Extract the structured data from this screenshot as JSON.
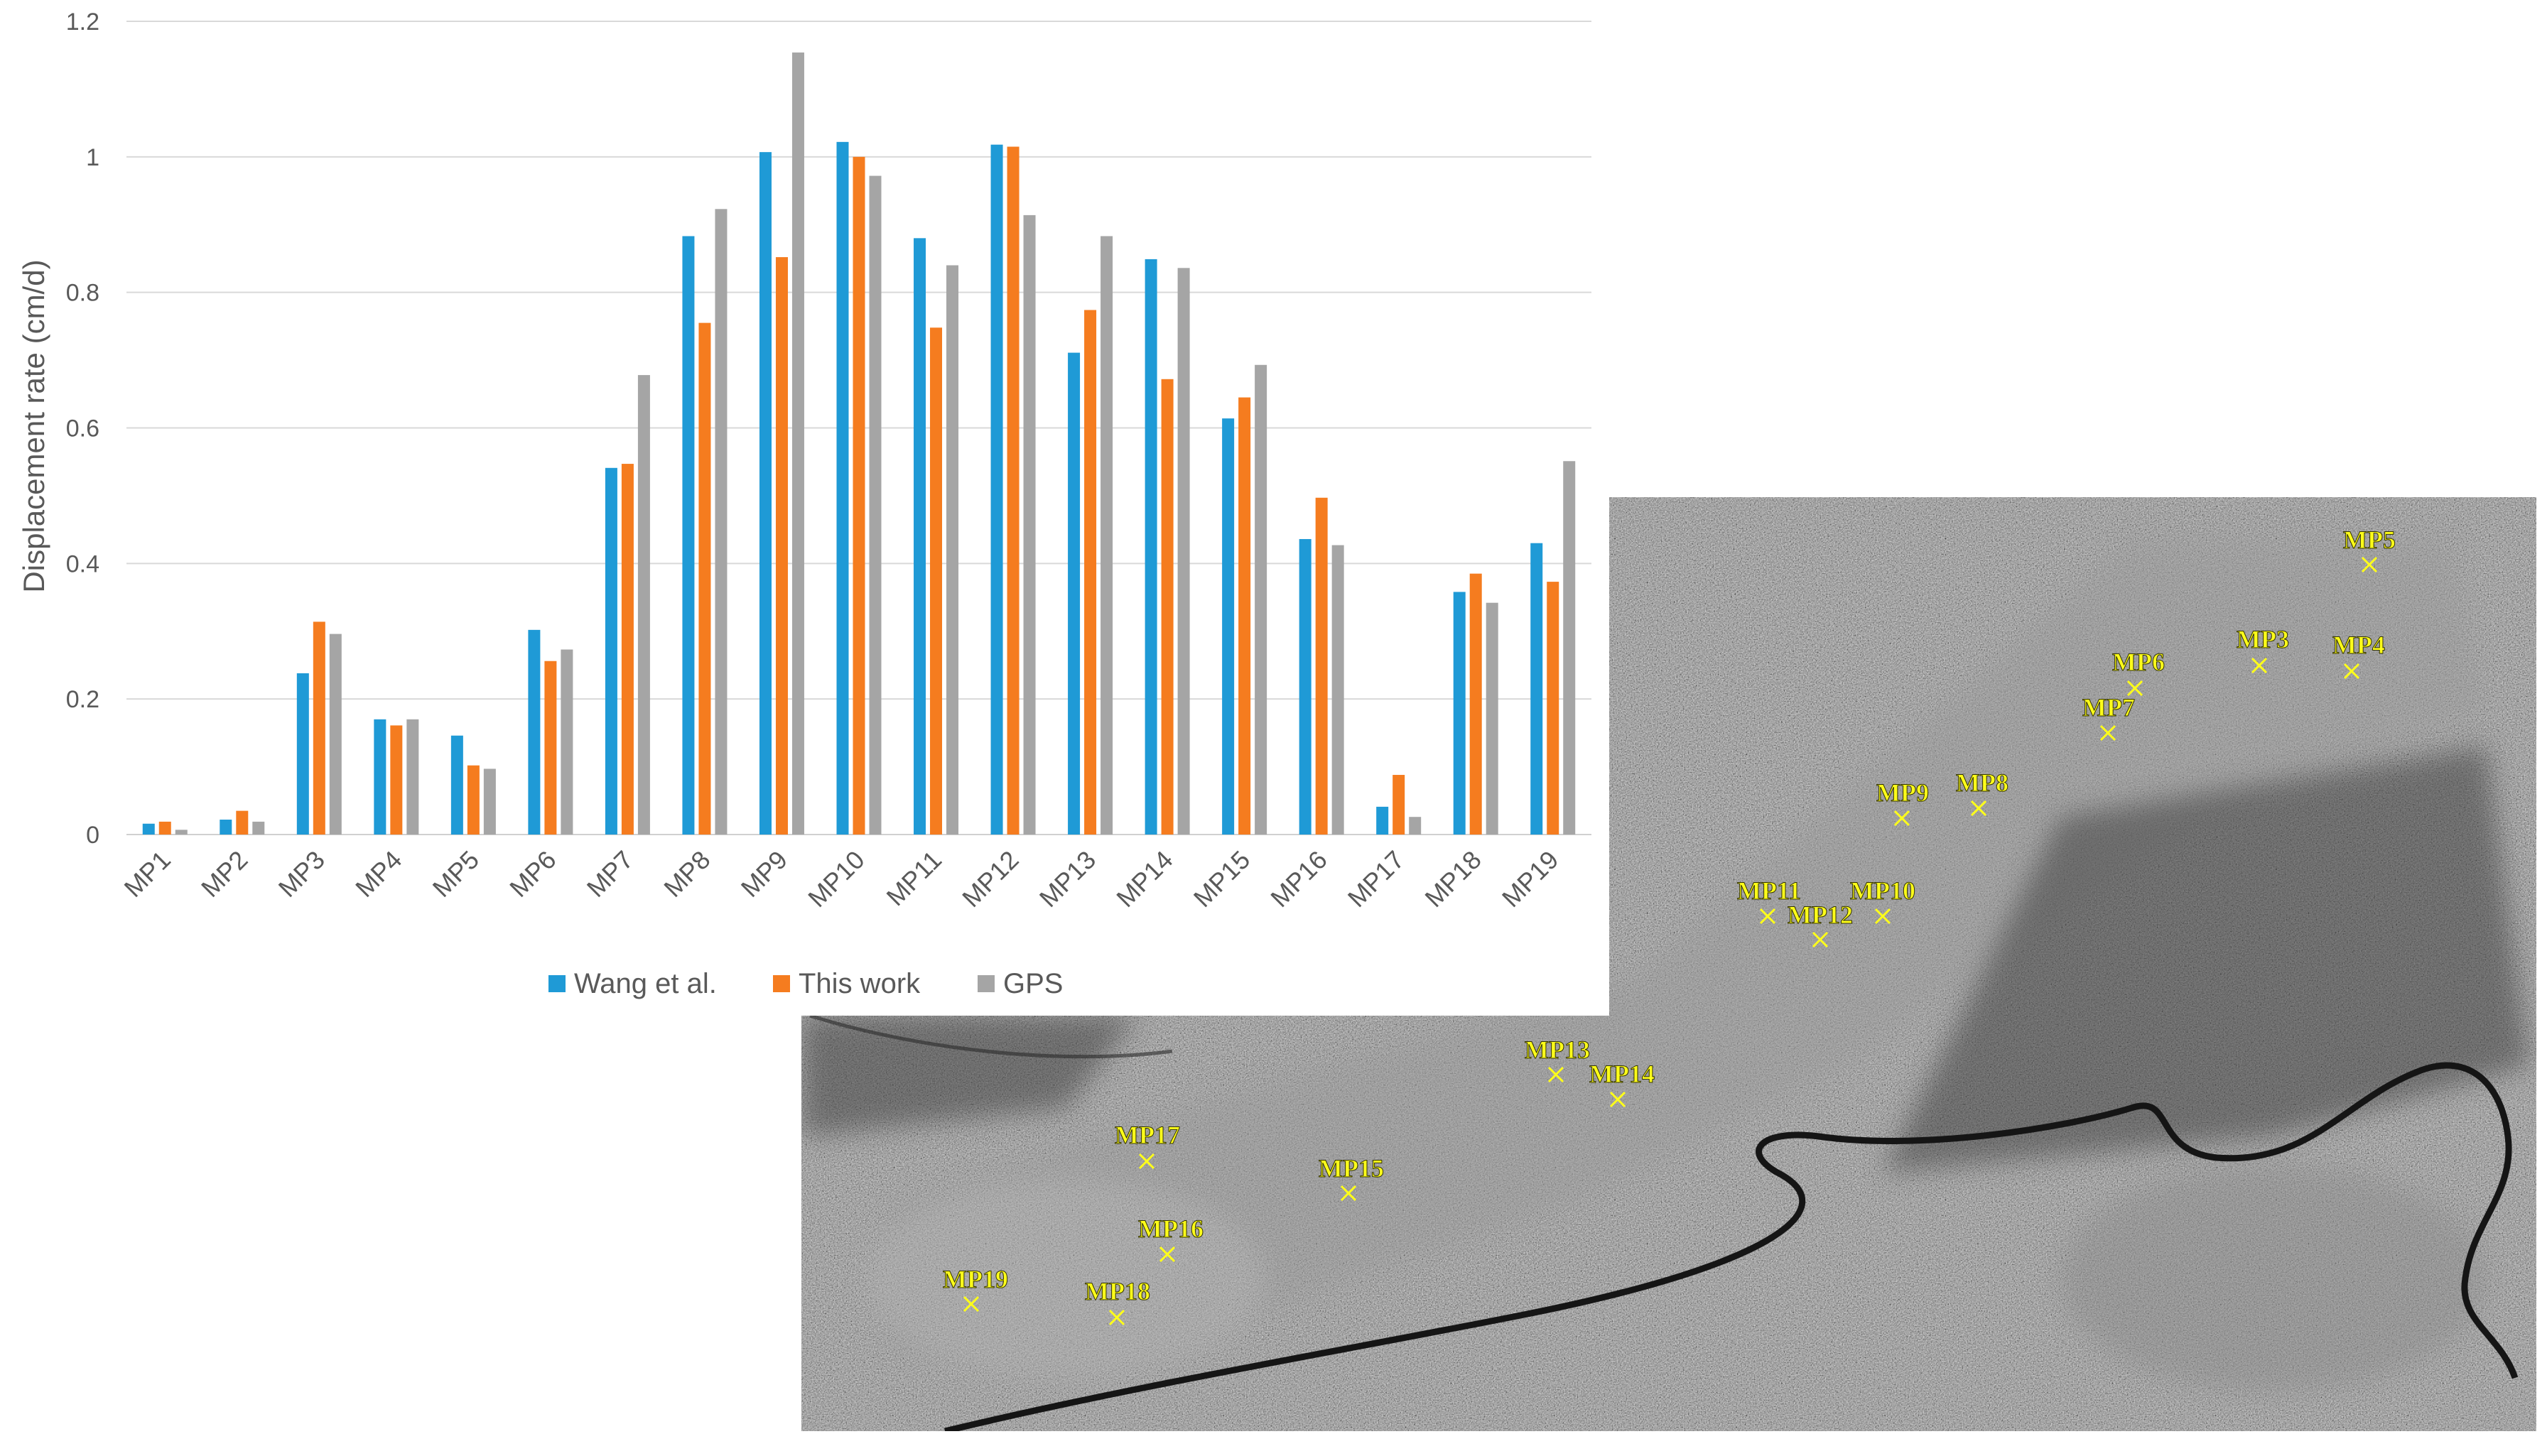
{
  "chart_data": {
    "type": "bar",
    "ylabel": "Displacement rate (cm/d)",
    "ylim": [
      0,
      1.2
    ],
    "yticks": [
      "0",
      "0.2",
      "0.4",
      "0.6",
      "0.8",
      "1",
      "1.2"
    ],
    "grid": true,
    "legend_position": "bottom",
    "categories": [
      "MP1",
      "MP2",
      "MP3",
      "MP4",
      "MP5",
      "MP6",
      "MP7",
      "MP8",
      "MP9",
      "MP10",
      "MP11",
      "MP12",
      "MP13",
      "MP14",
      "MP15",
      "MP16",
      "MP17",
      "MP18",
      "MP19"
    ],
    "series": [
      {
        "name": "Wang et al.",
        "color": "#1f9ad6",
        "values": [
          0.016,
          0.022,
          0.238,
          0.17,
          0.146,
          0.302,
          0.541,
          0.883,
          1.007,
          1.022,
          0.88,
          1.018,
          0.711,
          0.849,
          0.614,
          0.436,
          0.041,
          0.358,
          0.43
        ]
      },
      {
        "name": "This work",
        "color": "#f57c1f",
        "values": [
          0.019,
          0.035,
          0.314,
          0.161,
          0.102,
          0.256,
          0.547,
          0.755,
          0.852,
          1.0,
          0.748,
          1.015,
          0.774,
          0.672,
          0.645,
          0.497,
          0.088,
          0.385,
          0.373
        ]
      },
      {
        "name": "GPS",
        "color": "#a5a5a5",
        "values": [
          0.007,
          0.019,
          0.296,
          0.17,
          0.097,
          0.273,
          0.678,
          0.923,
          1.154,
          0.972,
          0.84,
          0.914,
          0.883,
          0.836,
          0.693,
          0.427,
          0.026,
          0.342,
          0.551
        ]
      }
    ]
  },
  "sar_image": {
    "point_color": "#ffff1a",
    "points": [
      "MP5",
      "MP3",
      "MP4",
      "MP6",
      "MP7",
      "MP9",
      "MP8",
      "MP11",
      "MP10",
      "MP12",
      "MP13",
      "MP14",
      "MP17",
      "MP15",
      "MP16",
      "MP19",
      "MP18"
    ]
  }
}
